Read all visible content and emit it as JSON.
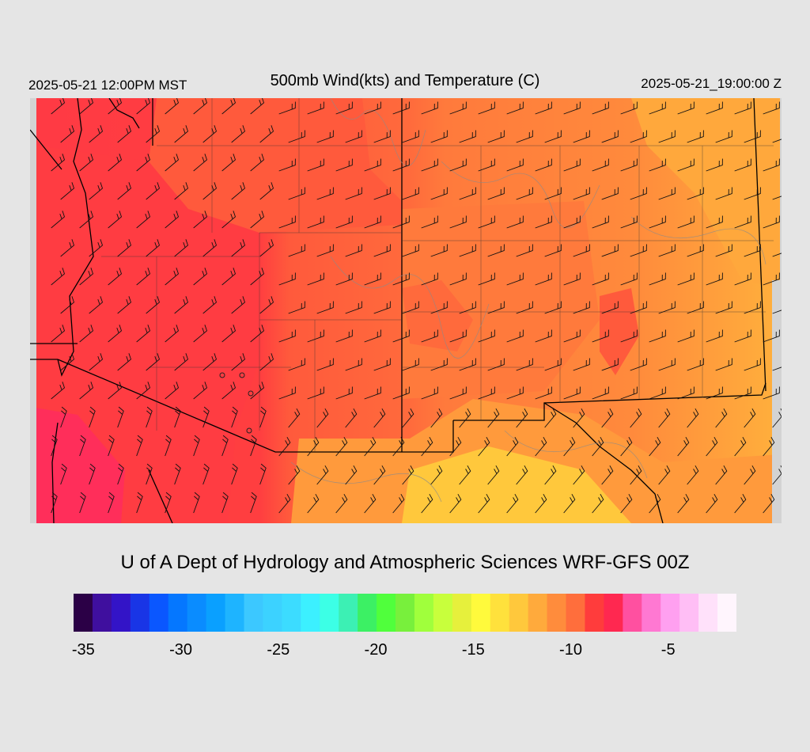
{
  "header": {
    "local_time": "2025-05-21 12:00PM MST",
    "title": "500mb Wind(kts) and Temperature (C)",
    "valid_time": "2025-05-21_19:00:00 Z"
  },
  "credit": "U of A Dept of Hydrology and Atmospheric Sciences WRF-GFS 00Z",
  "colorbar": {
    "colors": [
      "#2b0046",
      "#3f0f9e",
      "#3314c7",
      "#1935e6",
      "#0a57ff",
      "#0577ff",
      "#0a8cff",
      "#0aa0ff",
      "#1eb4ff",
      "#3cc8ff",
      "#3cd2ff",
      "#3cdcff",
      "#3cf0ff",
      "#3cffe6",
      "#3cf0b4",
      "#3cf064",
      "#50ff3c",
      "#78f03c",
      "#a0ff3c",
      "#c8ff3c",
      "#e6f03c",
      "#fffa3c",
      "#ffe13c",
      "#ffc83c",
      "#ffaa3c",
      "#ff8c3c",
      "#ff6e3c",
      "#ff3c3c",
      "#ff2850",
      "#ff50a0",
      "#ff78d2",
      "#ffa0f0",
      "#ffbef5",
      "#ffe1fa",
      "#fff5fd"
    ],
    "ticks": [
      {
        "label": "-35",
        "value": -35
      },
      {
        "label": "-30",
        "value": -30
      },
      {
        "label": "-25",
        "value": -25
      },
      {
        "label": "-20",
        "value": -20
      },
      {
        "label": "-15",
        "value": -15
      },
      {
        "label": "-10",
        "value": -10
      },
      {
        "label": "-5",
        "value": -5
      }
    ],
    "vmin": -35.5,
    "vmax": -1.5
  },
  "field_colors": {
    "pink": "#ff2e5a",
    "red_pink": "#ff3248",
    "red": "#ff4040",
    "red_orange": "#ff5a3c",
    "orange": "#ff7a3c",
    "orange_light": "#ff963c",
    "amber": "#ffb43c",
    "yellow": "#ffd23c",
    "border_gray": "#d3d3d3"
  }
}
